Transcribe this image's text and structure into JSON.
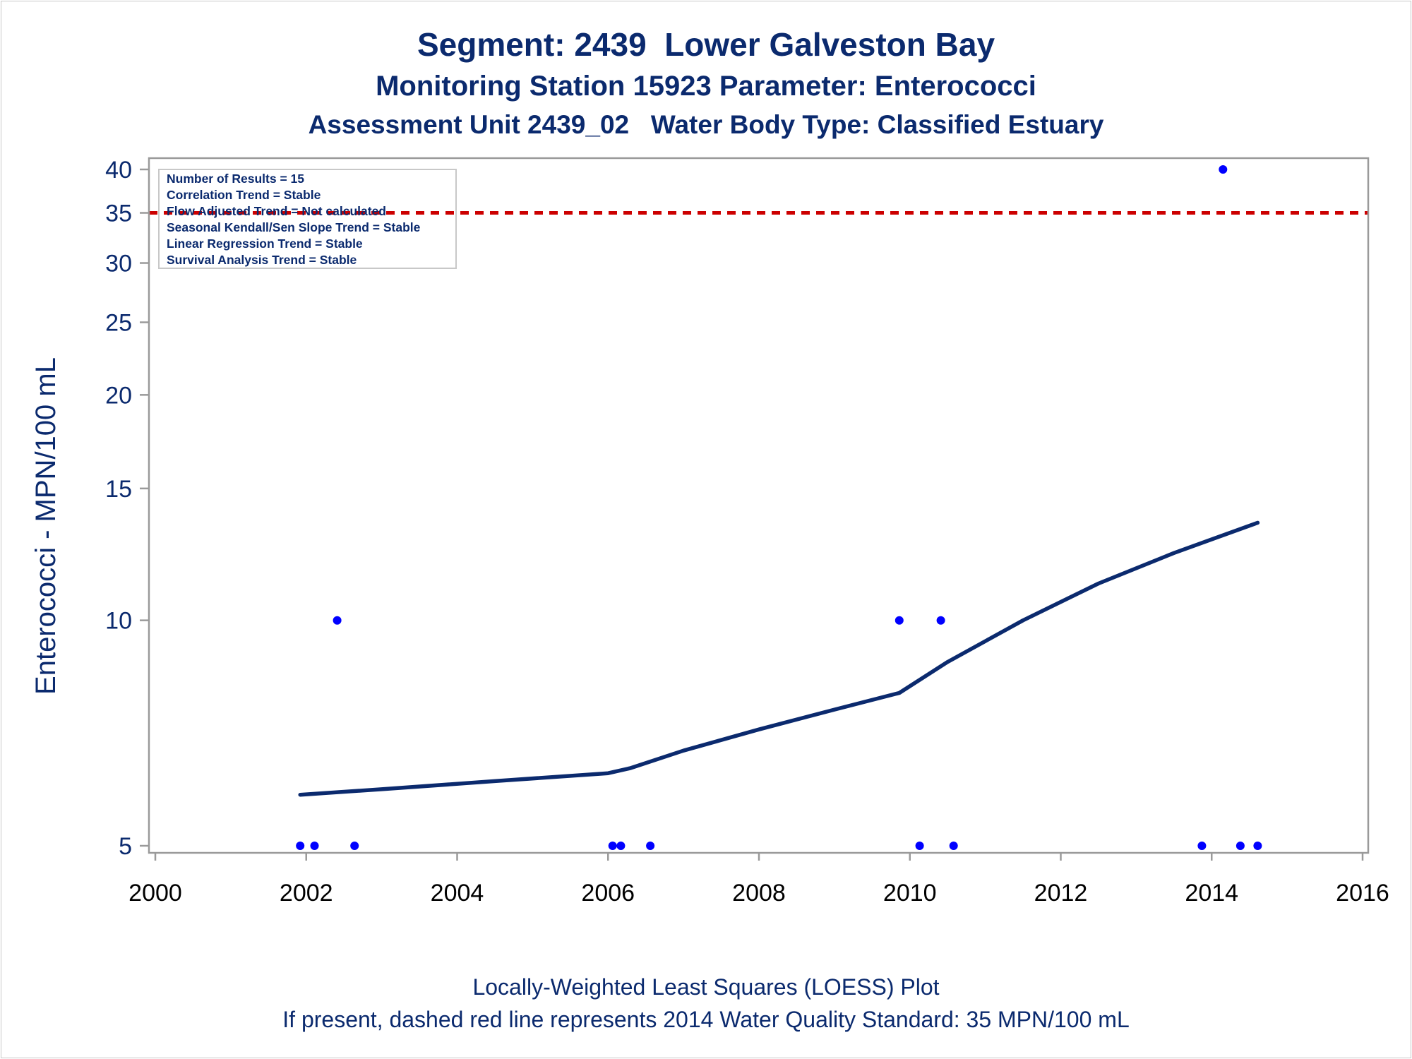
{
  "titles": {
    "line1": "Segment: 2439  Lower Galveston Bay",
    "line2": "Monitoring Station 15923 Parameter: Enterococci",
    "line3": "Assessment Unit 2439_02   Water Body Type: Classified Estuary"
  },
  "footnotes": {
    "line1": "Locally-Weighted Least Squares (LOESS) Plot",
    "line2": "If present, dashed red line represents 2014 Water Quality Standard: 35 MPN/100 mL"
  },
  "stats_box": [
    "Number of Results = 15",
    "Correlation Trend = Stable",
    "Flow Adjusted Trend = Not calculated",
    "Seasonal Kendall/Sen Slope Trend = Stable",
    "Linear Regression Trend = Stable",
    "Survival Analysis Trend = Stable"
  ],
  "colors": {
    "text": "#0b2a6e",
    "points": "#0000ff",
    "loess": "#0b2a6e",
    "standard_line": "#cc0000",
    "axis": "#9a9a9a"
  },
  "chart_data": {
    "type": "scatter",
    "xlabel": "",
    "ylabel": "Enterococci - MPN/100 mL",
    "yscale": "log",
    "xlim": [
      2000,
      2016
    ],
    "ylim": [
      4.9,
      41
    ],
    "x_ticks": [
      2000,
      2002,
      2004,
      2006,
      2008,
      2010,
      2012,
      2014,
      2016
    ],
    "y_ticks": [
      5,
      10,
      15,
      20,
      25,
      30,
      35,
      40
    ],
    "grid": false,
    "points": [
      {
        "x": 2001.92,
        "y": 5
      },
      {
        "x": 2002.11,
        "y": 5
      },
      {
        "x": 2002.41,
        "y": 10
      },
      {
        "x": 2002.64,
        "y": 5
      },
      {
        "x": 2006.06,
        "y": 5
      },
      {
        "x": 2006.17,
        "y": 5
      },
      {
        "x": 2006.56,
        "y": 5
      },
      {
        "x": 2009.86,
        "y": 10
      },
      {
        "x": 2010.13,
        "y": 5
      },
      {
        "x": 2010.41,
        "y": 10
      },
      {
        "x": 2010.58,
        "y": 5
      },
      {
        "x": 2013.87,
        "y": 5
      },
      {
        "x": 2014.15,
        "y": 40
      },
      {
        "x": 2014.38,
        "y": 5
      },
      {
        "x": 2014.61,
        "y": 5
      }
    ],
    "loess": [
      {
        "x": 2001.92,
        "y": 5.85
      },
      {
        "x": 2003.0,
        "y": 5.95
      },
      {
        "x": 2004.5,
        "y": 6.1
      },
      {
        "x": 2006.0,
        "y": 6.25
      },
      {
        "x": 2006.3,
        "y": 6.35
      },
      {
        "x": 2007.0,
        "y": 6.7
      },
      {
        "x": 2008.0,
        "y": 7.15
      },
      {
        "x": 2009.0,
        "y": 7.6
      },
      {
        "x": 2009.86,
        "y": 8.0
      },
      {
        "x": 2010.5,
        "y": 8.8
      },
      {
        "x": 2011.5,
        "y": 10.0
      },
      {
        "x": 2012.5,
        "y": 11.2
      },
      {
        "x": 2013.5,
        "y": 12.3
      },
      {
        "x": 2014.61,
        "y": 13.5
      }
    ],
    "standard": {
      "y": 35
    }
  }
}
